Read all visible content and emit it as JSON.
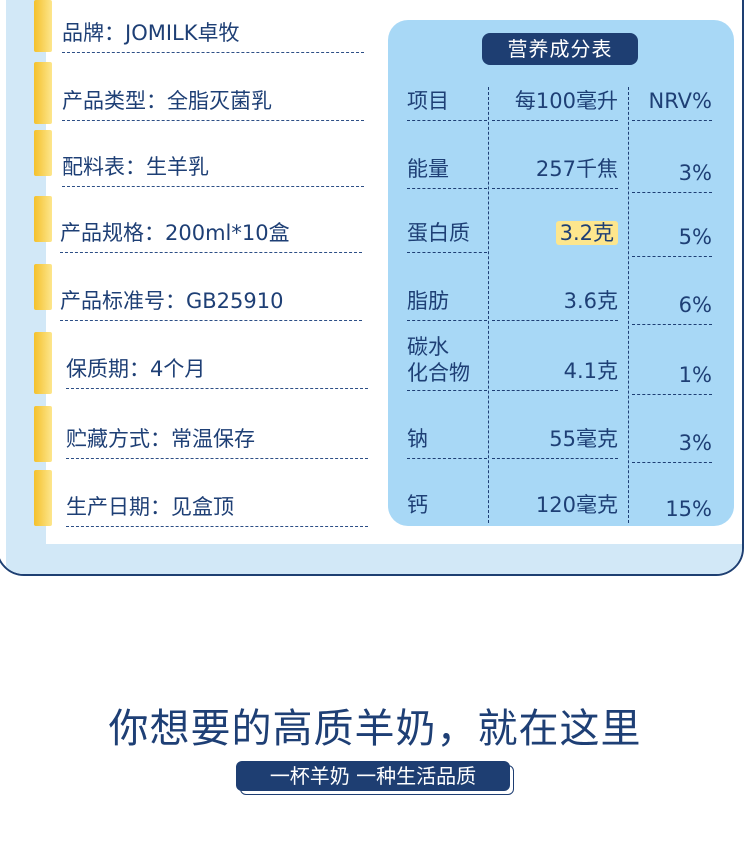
{
  "product_specs": [
    {
      "label": "品牌：JOMILK卓牧"
    },
    {
      "label": "产品类型：全脂灭菌乳"
    },
    {
      "label": "配料表：生羊乳"
    },
    {
      "label": "产品规格：200ml*10盒"
    },
    {
      "label": "产品标准号：GB25910"
    },
    {
      "label": "保质期：4个月"
    },
    {
      "label": "贮藏方式：常温保存"
    },
    {
      "label": "生产日期：见盒顶"
    }
  ],
  "nutrition": {
    "title": "营养成分表",
    "headers": [
      "项目",
      "每100毫升",
      "NRV%"
    ],
    "rows": [
      {
        "item": "能量",
        "amount": "257千焦",
        "nrv": "3%"
      },
      {
        "item": "蛋白质",
        "amount": "3.2克",
        "nrv": "5%"
      },
      {
        "item": "脂肪",
        "amount": "3.6克",
        "nrv": "6%"
      },
      {
        "item": "碳水\n化合物",
        "amount": "4.1克",
        "nrv": "1%"
      },
      {
        "item": "钠",
        "amount": "55毫克",
        "nrv": "3%"
      },
      {
        "item": "钙",
        "amount": "120毫克",
        "nrv": "15%"
      }
    ]
  },
  "headline": "你想要的高质羊奶，就在这里",
  "tagline": "一杯羊奶 一种生活品质",
  "colors": {
    "navy": "#1e3e72",
    "panel_blue": "#a8d8f6",
    "strip_blue": "#d2e8f7",
    "yellow": "#f4c12c",
    "highlight": "#fde68d"
  }
}
